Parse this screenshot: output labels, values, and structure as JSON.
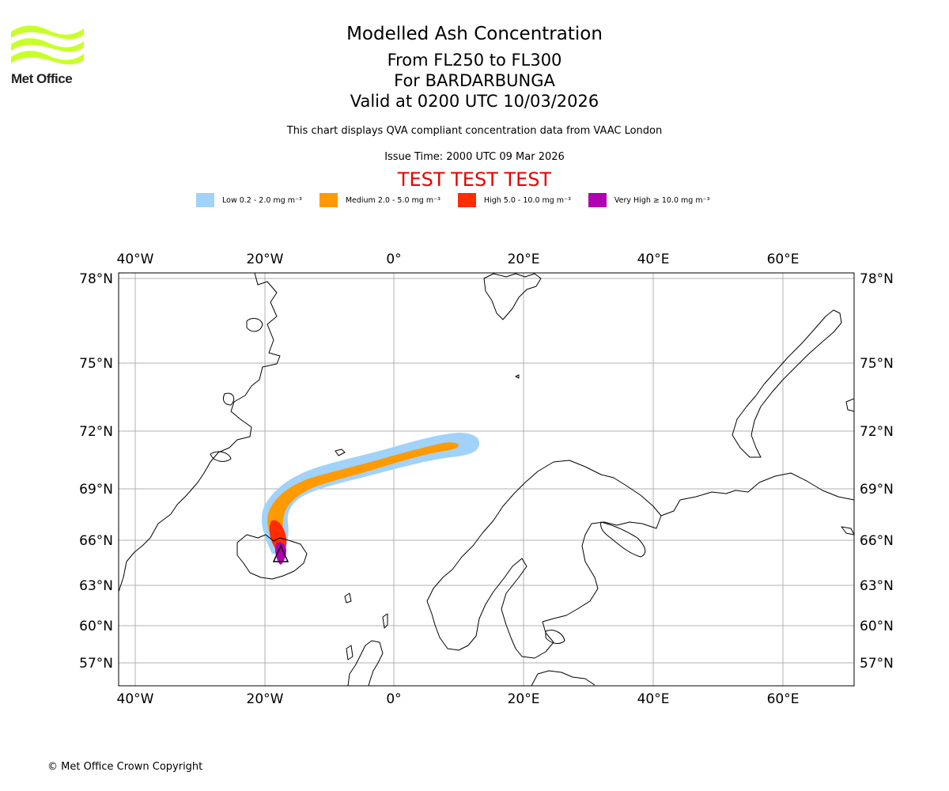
{
  "header": {
    "logo_text": "Met Office",
    "title": "Modelled Ash Concentration",
    "levels": "From FL250 to FL300",
    "volcano": "For BARDARBUNGA",
    "valid": "Valid at 0200 UTC 10/03/2026",
    "subtitle": "This chart displays QVA compliant concentration data from VAAC London",
    "issue_time": "Issue Time: 2000 UTC 09 Mar 2026",
    "test_banner": "TEST TEST TEST"
  },
  "legend": [
    {
      "label": "Low 0.2 - 2.0 mg m⁻³",
      "color": "#a0d2fa"
    },
    {
      "label": "Medium 2.0 - 5.0 mg m⁻³",
      "color": "#ff9a00"
    },
    {
      "label": "High 5.0 - 10.0 mg m⁻³",
      "color": "#ff2d00"
    },
    {
      "label": "Very High ≥ 10.0 mg m⁻³",
      "color": "#b000b0"
    }
  ],
  "map": {
    "lon_ticks": [
      "40°W",
      "20°W",
      "0°",
      "20°E",
      "40°E",
      "60°E"
    ],
    "lat_ticks": [
      "78°N",
      "75°N",
      "72°N",
      "69°N",
      "66°N",
      "63°N",
      "60°N",
      "57°N"
    ],
    "colors": {
      "grid": "#b0b0b0",
      "coast": "#000000",
      "frame": "#000000"
    }
  },
  "footer": {
    "copyright": "© Met Office Crown Copyright"
  }
}
